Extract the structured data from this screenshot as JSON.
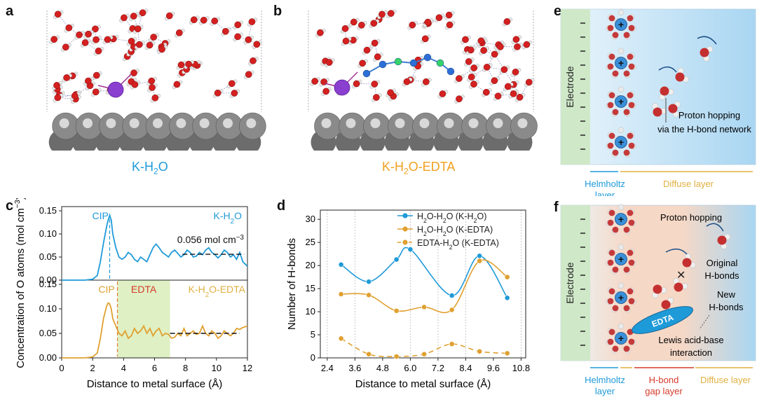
{
  "panels": {
    "a": {
      "letter": "a",
      "caption": "K-H",
      "caption_sub": "2",
      "caption_tail": "O"
    },
    "b": {
      "letter": "b",
      "caption": "K-H",
      "caption_sub": "2",
      "caption_tail": "O-EDTA"
    },
    "c": {
      "letter": "c"
    },
    "d": {
      "letter": "d"
    },
    "e": {
      "letter": "e",
      "electrode": "Electrode",
      "hopping": "Proton hopping",
      "hopping2": "via the H-bond network",
      "helmholtz1": "Helmholtz",
      "helmholtz2": "layer",
      "diffuse": "Diffuse layer"
    },
    "f": {
      "letter": "f",
      "electrode": "Electrode",
      "hopping": "Proton hopping",
      "original1": "Original",
      "original2": "H-bonds",
      "new1": "New",
      "new2": "H-bonds",
      "edta": "EDTA",
      "lewis1": "Lewis acid-base",
      "lewis2": "interaction",
      "helmholtz1": "Helmholtz",
      "helmholtz2": "layer",
      "gap1": "H-bond",
      "gap2": "gap layer",
      "diffuse": "Diffuse layer"
    }
  },
  "colors": {
    "blue": "#1f9ad8",
    "orange": "#e0a030",
    "red": "#d43a2a",
    "green_band": "#dff0c4",
    "electrode_green": "#cfe8c8",
    "diffuse_blue": "#bfe0f5"
  },
  "chart_data": [
    {
      "type": "line",
      "id": "c",
      "ylabel": "Concentration of O atoms (mol cm",
      "ylabel_sup": "−3",
      "ylabel_tail": ")",
      "xlabel": "Distance to metal surface (Å)",
      "xlim": [
        0,
        12
      ],
      "xticks": [
        "0",
        "2",
        "4",
        "6",
        "8",
        "10",
        "12"
      ],
      "top": {
        "ylim": [
          0,
          0.15
        ],
        "yticks": [
          "0.00",
          "0.05",
          "0.10",
          "0.15"
        ],
        "label_cip": "CIP",
        "label_sys": "K-H",
        "label_sys_sub": "2",
        "label_sys_tail": "O",
        "annotation": "0.056 mol cm",
        "annotation_sup": "−3",
        "ref_value": 0.056,
        "cip_x": 3.1,
        "series": {
          "name": "K-H2O",
          "x": [
            0,
            1.5,
            2.0,
            2.3,
            2.5,
            2.7,
            2.9,
            3.0,
            3.1,
            3.2,
            3.3,
            3.5,
            3.7,
            3.9,
            4.1,
            4.3,
            4.5,
            4.7,
            4.9,
            5.1,
            5.3,
            5.5,
            5.7,
            5.9,
            6.1,
            6.3,
            6.5,
            6.7,
            6.9,
            7.1,
            7.3,
            7.5,
            7.7,
            7.9,
            8.1,
            8.3,
            8.5,
            8.7,
            8.9,
            9.1,
            9.3,
            9.5,
            9.7,
            9.9,
            10.1,
            10.3,
            10.5,
            10.7,
            10.9,
            11.1,
            11.3,
            11.5,
            11.7,
            12.0
          ],
          "values": [
            0,
            0,
            0.002,
            0.01,
            0.04,
            0.08,
            0.115,
            0.13,
            0.14,
            0.13,
            0.1,
            0.07,
            0.05,
            0.045,
            0.05,
            0.06,
            0.055,
            0.045,
            0.04,
            0.05,
            0.045,
            0.04,
            0.055,
            0.07,
            0.078,
            0.07,
            0.06,
            0.055,
            0.05,
            0.06,
            0.065,
            0.058,
            0.05,
            0.055,
            0.065,
            0.06,
            0.05,
            0.052,
            0.06,
            0.055,
            0.065,
            0.07,
            0.06,
            0.055,
            0.048,
            0.055,
            0.065,
            0.06,
            0.05,
            0.055,
            0.045,
            0.06,
            0.04,
            0.03
          ]
        }
      },
      "bottom": {
        "ylim": [
          0,
          0.15
        ],
        "yticks": [
          "0.00",
          "0.05",
          "0.10",
          "0.15"
        ],
        "label_cip": "CIP",
        "label_edta": "EDTA",
        "label_sys": "K-H",
        "label_sys_sub": "2",
        "label_sys_tail": "O-EDTA",
        "ref_value": 0.05,
        "cip_x": 3.6,
        "edta_range": [
          3.6,
          7.0
        ],
        "series": {
          "name": "K-H2O-EDTA",
          "x": [
            0,
            1.5,
            2.0,
            2.3,
            2.5,
            2.7,
            2.9,
            3.0,
            3.1,
            3.2,
            3.3,
            3.5,
            3.7,
            3.9,
            4.1,
            4.3,
            4.5,
            4.7,
            4.9,
            5.1,
            5.3,
            5.5,
            5.7,
            5.9,
            6.1,
            6.3,
            6.5,
            6.7,
            6.9,
            7.1,
            7.3,
            7.5,
            7.7,
            7.9,
            8.1,
            8.3,
            8.5,
            8.7,
            8.9,
            9.1,
            9.3,
            9.5,
            9.7,
            9.9,
            10.1,
            10.3,
            10.5,
            10.7,
            10.9,
            11.1,
            11.3,
            11.5,
            11.7,
            12.0
          ],
          "values": [
            0,
            0,
            0.002,
            0.01,
            0.04,
            0.08,
            0.105,
            0.112,
            0.11,
            0.1,
            0.08,
            0.065,
            0.05,
            0.045,
            0.055,
            0.04,
            0.045,
            0.06,
            0.05,
            0.055,
            0.065,
            0.05,
            0.06,
            0.045,
            0.055,
            0.06,
            0.045,
            0.05,
            0.048,
            0.04,
            0.042,
            0.05,
            0.045,
            0.06,
            0.045,
            0.05,
            0.055,
            0.048,
            0.05,
            0.065,
            0.05,
            0.045,
            0.055,
            0.05,
            0.04,
            0.045,
            0.055,
            0.05,
            0.045,
            0.05,
            0.06,
            0.058,
            0.062,
            0.065
          ]
        }
      }
    },
    {
      "type": "line",
      "id": "d",
      "ylabel": "Number of H-bonds",
      "xlabel": "Distance to metal surface (Å)",
      "xlim": [
        2.1,
        11.0
      ],
      "ylim": [
        0,
        32
      ],
      "xticks": [
        "2.4",
        "3.6",
        "4.8",
        "6.0",
        "7.2",
        "8.4",
        "9.6",
        "10.8"
      ],
      "yticks": [
        "0",
        "5",
        "10",
        "15",
        "20",
        "25",
        "30"
      ],
      "legend_position": "top-right",
      "legend": [
        {
          "label": "H",
          "sub": "2",
          "tail": "O-H",
          "sub2": "2",
          "tail2": "O (K-H",
          "sub3": "2",
          "tail3": "O)"
        },
        {
          "label": "H",
          "sub": "2",
          "tail": "O-H",
          "sub2": "2",
          "tail2": "O (K-EDTA)",
          "sub3": "",
          "tail3": ""
        },
        {
          "label": "EDTA-H",
          "sub": "2",
          "tail": "O (K-EDTA)",
          "sub2": "",
          "tail2": "",
          "sub3": "",
          "tail3": ""
        }
      ],
      "series": [
        {
          "color": "#1f9ad8",
          "style": "solid",
          "x": [
            3.0,
            4.2,
            5.4,
            6.0,
            7.8,
            9.0,
            10.2
          ],
          "values": [
            20.2,
            16.5,
            21.3,
            23.5,
            13.5,
            22.1,
            13.0
          ]
        },
        {
          "color": "#e0a030",
          "style": "solid",
          "x": [
            3.0,
            4.2,
            5.4,
            6.6,
            7.8,
            9.0,
            10.2
          ],
          "values": [
            13.8,
            13.6,
            10.2,
            11.0,
            10.4,
            21.0,
            17.5
          ]
        },
        {
          "color": "#e0a030",
          "style": "dashed",
          "x": [
            3.0,
            4.2,
            5.4,
            6.6,
            7.8,
            9.0,
            10.2
          ],
          "values": [
            4.2,
            0.8,
            0.3,
            0.8,
            3.0,
            1.4,
            1.0
          ]
        }
      ],
      "vlines": [
        2.4,
        3.6,
        6.0,
        7.2,
        8.4,
        10.8
      ]
    }
  ]
}
